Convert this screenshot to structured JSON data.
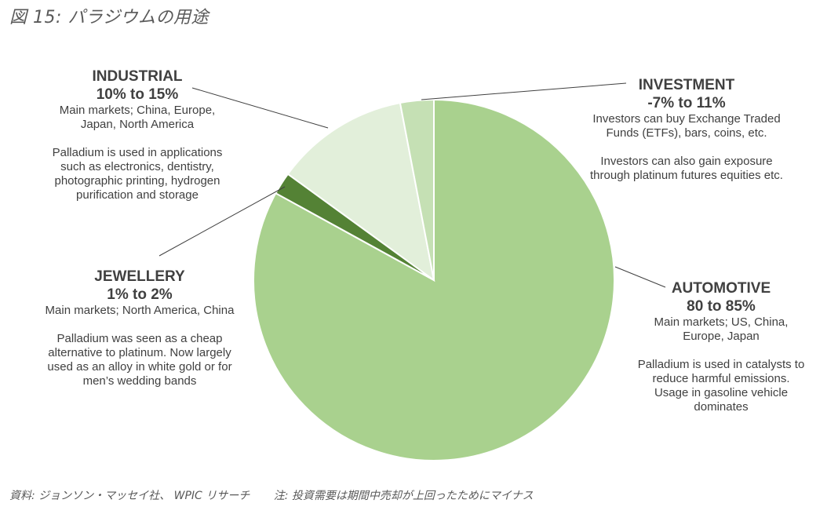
{
  "figure": {
    "title": "図 15: パラジウムの用途",
    "source": "資料: ジョンソン・マッセイ社、 WPIC リサーチ",
    "note": "注: 投資需要は期間中売却が上回ったためにマイナス"
  },
  "chart_data": {
    "type": "pie",
    "title": "",
    "slices": [
      {
        "name": "AUTOMOTIVE",
        "value": 83.0,
        "color": "#a9d18e"
      },
      {
        "name": "JEWELLERY",
        "value": 2.0,
        "color": "#548235"
      },
      {
        "name": "INDUSTRIAL",
        "value": 12.0,
        "color": "#e2efda"
      },
      {
        "name": "INVESTMENT",
        "value": 3.0,
        "color": "#c5e0b4"
      }
    ],
    "start": "12 o'clock",
    "direction": "clockwise"
  },
  "labels": {
    "industrial": {
      "name": "INDUSTRIAL",
      "range": "10% to 15%",
      "line1": "Main markets; China, Europe,",
      "line2": "Japan, North America",
      "line3": "Palladium is used in applications",
      "line4": "such as electronics, dentistry,",
      "line5": "photographic printing, hydrogen",
      "line6": "purification and storage"
    },
    "investment": {
      "name": "INVESTMENT",
      "range": "-7% to 11%",
      "line1": "Investors can buy Exchange Traded",
      "line2": "Funds (ETFs), bars, coins, etc.",
      "line3": "Investors can also gain exposure",
      "line4": "through platinum futures equities etc."
    },
    "jewellery": {
      "name": "JEWELLERY",
      "range": "1% to 2%",
      "line1": "Main markets; North America, China",
      "line2": "Palladium was seen as a cheap",
      "line3": "alternative to platinum. Now largely",
      "line4": "used as an alloy in white gold or for",
      "line5": "men’s wedding bands"
    },
    "automotive": {
      "name": "AUTOMOTIVE",
      "range": "80 to 85%",
      "line1": "Main markets; US, China,",
      "line2": "Europe, Japan",
      "line3": "Palladium is used in catalysts to",
      "line4": "reduce harmful emissions.",
      "line5": "Usage in gasoline vehicle",
      "line6": "dominates"
    }
  }
}
